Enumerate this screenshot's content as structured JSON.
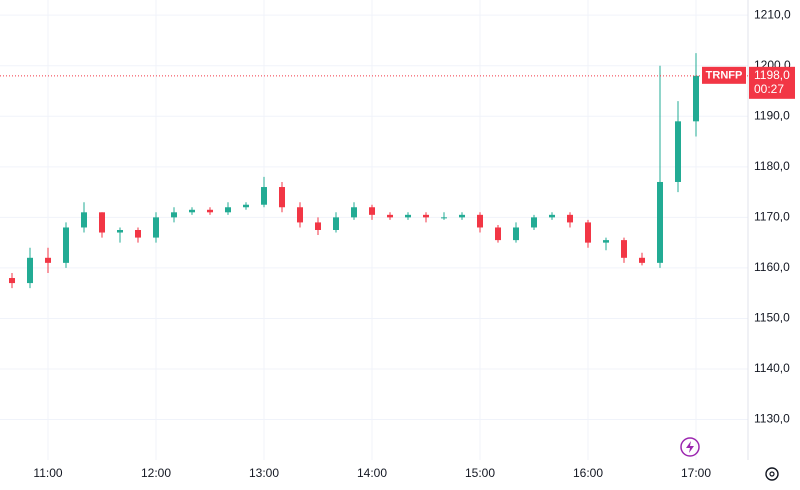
{
  "chart_data": {
    "type": "candlestick",
    "symbol": "TRNFP",
    "last_price": {
      "value": 1198,
      "label": "1198,0"
    },
    "countdown": "00:27",
    "up_color": "#22ab94",
    "down_color": "#f23645",
    "categories": [
      null,
      null,
      "11:00",
      null,
      null,
      null,
      null,
      null,
      "12:00",
      null,
      null,
      null,
      null,
      null,
      "13:00",
      null,
      null,
      null,
      null,
      null,
      "14:00",
      null,
      null,
      null,
      null,
      null,
      "15:00",
      null,
      null,
      null,
      null,
      null,
      "16:00",
      null,
      null,
      null,
      null,
      null,
      "17:00"
    ],
    "open": [
      1158,
      1157,
      1162,
      1161,
      1168,
      1171,
      1167,
      1167.5,
      1166,
      1170,
      1171,
      1171.5,
      1171,
      1172,
      1172.5,
      1176,
      1172,
      1169,
      1167.5,
      1170,
      1172,
      1170.5,
      1170,
      1170.5,
      1170,
      1170,
      1170.5,
      1168,
      1165.5,
      1168,
      1170,
      1170.5,
      1169,
      1165,
      1165.5,
      1162,
      1161,
      1177,
      1189
    ],
    "high": [
      1159,
      1164,
      1164,
      1169,
      1173,
      1171,
      1168,
      1168,
      1171,
      1172,
      1172,
      1172,
      1173,
      1173,
      1178,
      1177,
      1173,
      1170,
      1171,
      1173,
      1172.5,
      1171,
      1171,
      1171,
      1171,
      1171,
      1171,
      1168.5,
      1169,
      1170.5,
      1171,
      1171,
      1169.5,
      1166,
      1166,
      1163,
      1200,
      1193,
      1202.5
    ],
    "low": [
      1156,
      1156,
      1159,
      1160,
      1167,
      1166,
      1165,
      1165,
      1165,
      1169,
      1170.5,
      1170.5,
      1170.5,
      1171.5,
      1172,
      1171,
      1168,
      1166.5,
      1167,
      1169.5,
      1169.5,
      1169.5,
      1169.5,
      1169,
      1169.5,
      1169.5,
      1167,
      1165,
      1165,
      1167.5,
      1169.5,
      1168,
      1164,
      1163.5,
      1161,
      1160.5,
      1160,
      1175,
      1186
    ],
    "close": [
      1157,
      1162,
      1161,
      1168,
      1171,
      1167,
      1167.5,
      1166,
      1170,
      1171,
      1171.5,
      1171,
      1172,
      1172.5,
      1176,
      1172,
      1169,
      1167.5,
      1170,
      1172,
      1170.5,
      1170,
      1170.5,
      1170,
      1170,
      1170.5,
      1168,
      1165.5,
      1168,
      1170,
      1170.5,
      1169,
      1165,
      1165.5,
      1162,
      1161,
      1177,
      1189,
      1198
    ],
    "ylim": [
      1122,
      1213
    ],
    "yticks": [
      {
        "value": 1130,
        "label": "1130,0"
      },
      {
        "value": 1140,
        "label": "1140,0"
      },
      {
        "value": 1150,
        "label": "1150,0"
      },
      {
        "value": 1160,
        "label": "1160,0"
      },
      {
        "value": 1170,
        "label": "1170,0"
      },
      {
        "value": 1180,
        "label": "1180,0"
      },
      {
        "value": 1190,
        "label": "1190,0"
      },
      {
        "value": 1200,
        "label": "1200,0"
      },
      {
        "value": 1210,
        "label": "1210,0"
      }
    ],
    "grid": true
  }
}
